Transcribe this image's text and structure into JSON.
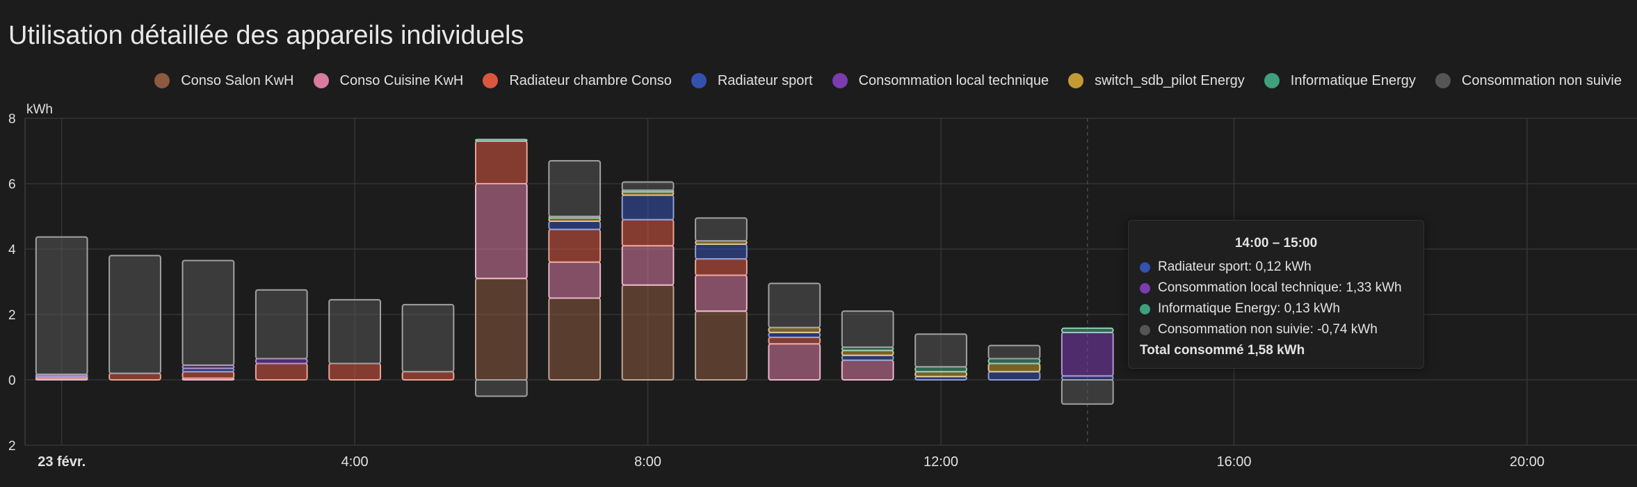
{
  "title": "Utilisation détaillée des appareils individuels",
  "chart_data": {
    "type": "bar",
    "stacked": true,
    "ylabel": "kWh",
    "ylim": [
      -2,
      8
    ],
    "yticks": [
      {
        "value": 8,
        "label": "8"
      },
      {
        "value": 6,
        "label": "6"
      },
      {
        "value": 4,
        "label": "4"
      },
      {
        "value": 2,
        "label": "2"
      },
      {
        "value": 0,
        "label": "0"
      },
      {
        "value": -2,
        "label": "2"
      }
    ],
    "xlim": [
      -0.5,
      21.5
    ],
    "xticks": [
      {
        "value": 0,
        "label": "23 févr.",
        "bold": true
      },
      {
        "value": 4,
        "label": "4:00"
      },
      {
        "value": 8,
        "label": "8:00"
      },
      {
        "value": 12,
        "label": "12:00"
      },
      {
        "value": 16,
        "label": "16:00"
      },
      {
        "value": 20,
        "label": "20:00"
      }
    ],
    "grid": true,
    "legend_position": "top-right",
    "hover_hour": 14,
    "hours": [
      0,
      1,
      2,
      3,
      4,
      5,
      6,
      7,
      8,
      9,
      10,
      11,
      12,
      13,
      14
    ],
    "series": [
      {
        "name": "Conso Salon KwH",
        "color": "#8d5a3f",
        "values": [
          0,
          0,
          0,
          0,
          0,
          0,
          3.1,
          2.5,
          2.9,
          2.1,
          0,
          0,
          0,
          0,
          0
        ]
      },
      {
        "name": "Conso Cuisine KwH",
        "color": "#d97aa0",
        "values": [
          0.05,
          0,
          0.05,
          0,
          0,
          0,
          2.9,
          1.1,
          1.2,
          1.1,
          1.1,
          0.6,
          0,
          0,
          0
        ]
      },
      {
        "name": "Radiateur chambre Conso",
        "color": "#d9573f",
        "values": [
          0.05,
          0.2,
          0.2,
          0.5,
          0.5,
          0.25,
          1.3,
          1.0,
          0.8,
          0.5,
          0.2,
          0,
          0,
          0,
          0
        ]
      },
      {
        "name": "Radiateur sport",
        "color": "#3451b0",
        "values": [
          0.02,
          0,
          0.1,
          0,
          0,
          0,
          0,
          0.25,
          0.75,
          0.45,
          0.15,
          0.15,
          0.1,
          0.25,
          0.12
        ]
      },
      {
        "name": "Consommation local technique",
        "color": "#7a3cb0",
        "values": [
          0.05,
          0,
          0.1,
          0.15,
          0,
          0,
          0,
          0,
          0,
          0,
          0,
          0,
          0,
          0,
          1.33
        ]
      },
      {
        "name": "switch_sdb_pilot Energy",
        "color": "#c49a35",
        "values": [
          0,
          0,
          0,
          0,
          0,
          0,
          0,
          0.1,
          0.1,
          0.1,
          0.15,
          0.15,
          0.15,
          0.25,
          0
        ]
      },
      {
        "name": "Informatique Energy",
        "color": "#3fa07c",
        "values": [
          0,
          0,
          0,
          0,
          0,
          0,
          0.05,
          0.05,
          0.05,
          0,
          0,
          0.1,
          0.15,
          0.15,
          0.13
        ]
      },
      {
        "name": "Consommation non suivie",
        "color": "#555555",
        "values": [
          4.2,
          3.6,
          3.2,
          2.1,
          1.95,
          2.05,
          -0.5,
          1.7,
          0.25,
          0.7,
          1.35,
          1.1,
          1.0,
          0.4,
          -0.74
        ]
      }
    ]
  },
  "tooltip": {
    "title": "14:00 – 15:00",
    "rows": [
      {
        "text": "Radiateur sport: 0,12 kWh",
        "color": "#3451b0"
      },
      {
        "text": "Consommation local technique: 1,33 kWh",
        "color": "#7a3cb0"
      },
      {
        "text": "Informatique Energy: 0,13 kWh",
        "color": "#3fa07c"
      },
      {
        "text": "Consommation non suivie: -0,74 kWh",
        "color": "#555555"
      }
    ],
    "total": "Total consommé 1,58 kWh"
  }
}
